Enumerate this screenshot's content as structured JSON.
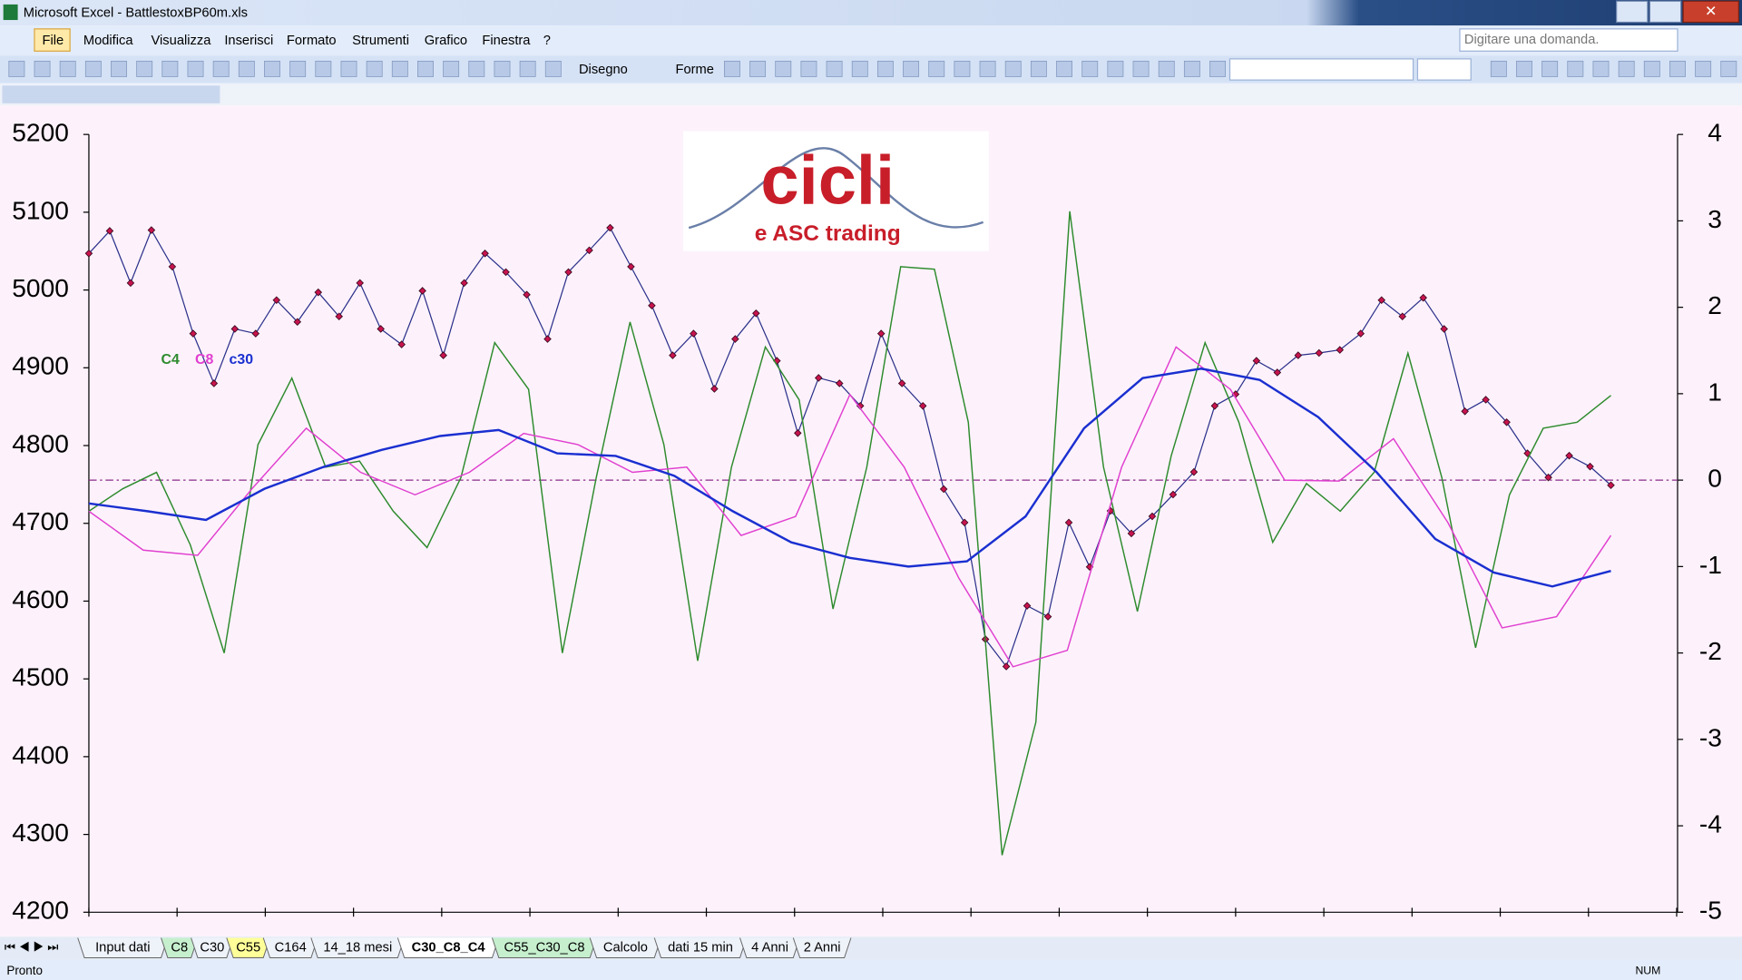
{
  "window": {
    "title": "Microsoft Excel - BattlestoxBP60m.xls"
  },
  "menu": [
    "File",
    "Modifica",
    "Visualizza",
    "Inserisci",
    "Formato",
    "Strumenti",
    "Grafico",
    "Finestra",
    "?"
  ],
  "help_box": "Digitare una domanda.",
  "toolbar": {
    "draw": "Disegno",
    "shapes": "Forme"
  },
  "logo": {
    "title": "cicli",
    "subtitle": "e ASC trading"
  },
  "sheet_tabs": [
    {
      "label": "Input dati"
    },
    {
      "label": "C8",
      "color": "#c6efce"
    },
    {
      "label": "C30"
    },
    {
      "label": "C55",
      "color": "#ffff99"
    },
    {
      "label": "C164"
    },
    {
      "label": "14_18 mesi"
    },
    {
      "label": "C30_C8_C4",
      "active": true
    },
    {
      "label": "C55_C30_C8",
      "color": "#c6efce"
    },
    {
      "label": "Calcolo"
    },
    {
      "label": "dati 15 min"
    },
    {
      "label": "4 Anni"
    },
    {
      "label": "2 Anni"
    }
  ],
  "status": {
    "left": "Pronto",
    "num": "NUM"
  },
  "chart_data": {
    "type": "line",
    "ylim": [
      4200,
      5200
    ],
    "yticks": [
      4200,
      4300,
      4400,
      4500,
      4600,
      4700,
      4800,
      4900,
      5000,
      5100,
      5200
    ],
    "y2lim": [
      -5,
      4
    ],
    "y2ticks": [
      -5,
      -4,
      -3,
      -2,
      -1,
      0,
      1,
      2,
      3,
      4
    ],
    "zero_line": 0,
    "series": [
      {
        "color": "#2a2f8a",
        "marker_color": "#c8144e",
        "values": [
          5047,
          5076,
          5009,
          5077,
          5030,
          4944,
          4880,
          4950,
          4944,
          4987,
          4959,
          4997,
          4966,
          5009,
          4950,
          4930,
          4999,
          4916,
          5009,
          5047,
          5023,
          4994,
          4937,
          5023,
          5051,
          5080,
          5030,
          4980,
          4916,
          4944,
          4873,
          4937,
          4970,
          4909,
          4816,
          4887,
          4880,
          4851,
          4944,
          4880,
          4851,
          4744,
          4701,
          4551,
          4516,
          4594,
          4580,
          4701,
          4644,
          4716,
          4687,
          4709,
          4737,
          4766,
          4851,
          4866,
          4909,
          4894,
          4916,
          4919,
          4923,
          4944,
          4987,
          4966,
          4990,
          4950,
          4844,
          4859,
          4830,
          4790,
          4759,
          4787,
          4773,
          4749
        ]
      },
      {
        "name": "C4",
        "color": "#2e8b2e",
        "axis": "y2",
        "values": [
          -0.36,
          -0.1,
          0.09,
          -0.75,
          -2.0,
          0.41,
          1.18,
          0.15,
          0.22,
          -0.36,
          -0.78,
          0.03,
          1.59,
          1.05,
          -2.0,
          0.03,
          1.83,
          0.41,
          -2.09,
          0.15,
          1.54,
          0.93,
          -1.49,
          0.15,
          2.47,
          2.44,
          0.67,
          -4.34,
          -2.8,
          3.11,
          0.15,
          -1.52,
          0.28,
          1.59,
          0.67,
          -0.72,
          -0.04,
          -0.36,
          0.09,
          1.47,
          0.03,
          -1.94,
          -0.17,
          0.6,
          0.67,
          0.98
        ]
      },
      {
        "name": "C8",
        "color": "#e040d0",
        "axis": "y2",
        "values": [
          -0.36,
          -0.81,
          -0.87,
          -0.1,
          0.6,
          0.09,
          -0.17,
          0.09,
          0.54,
          0.41,
          0.09,
          0.15,
          -0.64,
          -0.42,
          0.99,
          0.15,
          -1.13,
          -2.16,
          -1.97,
          0.15,
          1.54,
          1.05,
          0,
          -0.01,
          0.48,
          -0.49,
          -1.71,
          -1.58,
          -0.64
        ]
      },
      {
        "name": "c30",
        "color": "#1a2fd0",
        "axis": "y2",
        "values": [
          -0.27,
          -0.36,
          -0.46,
          -0.1,
          0.15,
          0.35,
          0.51,
          0.58,
          0.31,
          0.28,
          0.05,
          -0.36,
          -0.72,
          -0.9,
          -1.0,
          -0.94,
          -0.42,
          0.6,
          1.18,
          1.29,
          1.16,
          0.73,
          0.09,
          -0.68,
          -1.07,
          -1.23,
          -1.05
        ]
      }
    ]
  }
}
